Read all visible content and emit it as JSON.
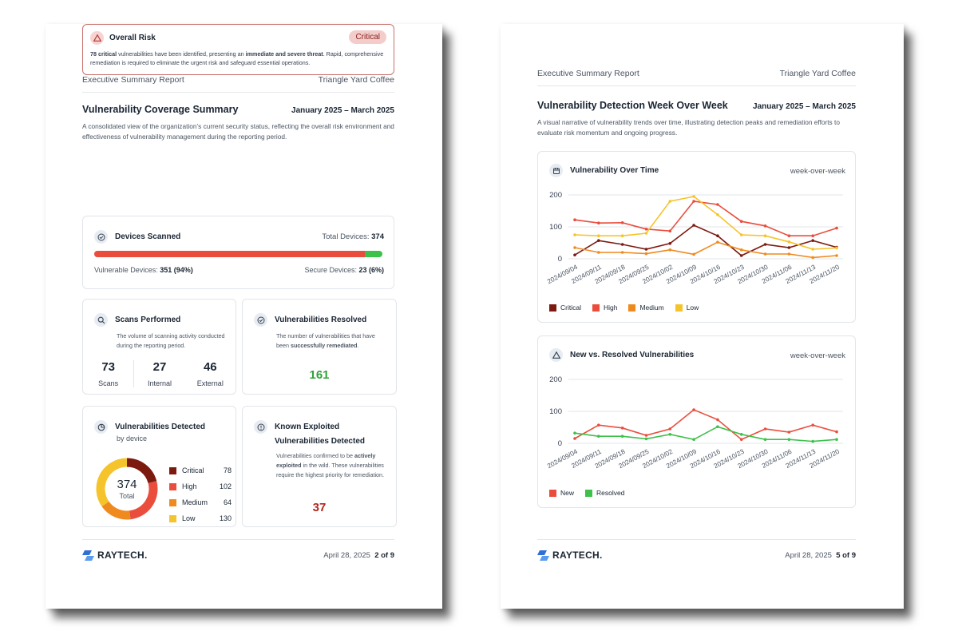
{
  "brand": {
    "logo_text": "RAYTECH."
  },
  "page1": {
    "header_left": "Executive Summary Report",
    "header_right": "Triangle Yard Coffee",
    "title": "Vulnerability Coverage Summary",
    "date_range": "January 2025 – March 2025",
    "description": "A consolidated view of the organization’s current security status, reflecting the overall risk environment and effectiveness of vulnerability management during the reporting period.",
    "overall_risk": {
      "title": "Overall Risk",
      "badge": "Critical",
      "body_bold1": "78 critical",
      "body_text1": " vulnerabilities have been identified, presenting an ",
      "body_bold2": "immediate and severe threat",
      "body_text2": ". Rapid, comprehensive remediation is required to eliminate the urgent risk and safeguard essential operations."
    },
    "devices": {
      "title": "Devices Scanned",
      "total_label": "Total Devices:",
      "total_value": "374",
      "vulnerable_label": "Vulnerable Devices:",
      "vulnerable_value": "351 (94%)",
      "secure_label": "Secure Devices:",
      "secure_value": "23 (6%)",
      "vulnerable_fraction": 0.94
    },
    "scans": {
      "title": "Scans Performed",
      "description": "The volume of scanning activity conducted during the reporting period.",
      "stats": [
        {
          "value": "73",
          "label": "Scans"
        },
        {
          "value": "27",
          "label": "Internal"
        },
        {
          "value": "46",
          "label": "External"
        }
      ]
    },
    "resolved": {
      "title": "Vulnerabilities Resolved",
      "desc_text": "The number of vulnerabilities that have been ",
      "desc_bold": "successfully remediated",
      "desc_end": ".",
      "value": "161",
      "color": "#33a13a"
    },
    "detected": {
      "title": "Vulnerabilities Detected",
      "subtitle": "by device",
      "total": "374",
      "total_label": "Total",
      "items": [
        {
          "label": "Critical",
          "value": "78",
          "color": "#7d1a10"
        },
        {
          "label": "High",
          "value": "102",
          "color": "#ea4d3c"
        },
        {
          "label": "Medium",
          "value": "64",
          "color": "#ef8a1f"
        },
        {
          "label": "Low",
          "value": "130",
          "color": "#f5c42c"
        }
      ]
    },
    "kev": {
      "title": "Known Exploited Vulnerabilities Detected",
      "desc_text1": "Vulnerabilities confirmed to be ",
      "desc_bold": "actively exploited",
      "desc_text2": " in the wild. These vulnerabilities require the highest priority for remediation.",
      "value": "37",
      "color": "#b3261e"
    },
    "footer_date": "April 28, 2025",
    "footer_page": "2 of 9"
  },
  "page2": {
    "header_left": "Executive Summary Report",
    "header_right": "Triangle Yard Coffee",
    "title": "Vulnerability Detection Week Over Week",
    "date_range": "January 2025 – March 2025",
    "description": "A visual narrative of vulnerability trends over time, illustrating detection peaks and remediation efforts to evaluate risk momentum and ongoing progress.",
    "footer_date": "April 28, 2025",
    "footer_page": "5 of 9"
  },
  "chart_data": [
    {
      "type": "line",
      "title": "Vulnerability Over Time",
      "subtitle": "week-over-week",
      "x": [
        "2024/09/04",
        "2024/09/11",
        "2024/09/18",
        "2024/09/25",
        "2024/10/02",
        "2024/10/09",
        "2024/10/16",
        "2024/10/23",
        "2024/10/30",
        "2024/11/06",
        "2024/11/13",
        "2024/11/20"
      ],
      "ylim": [
        0,
        200
      ],
      "yticks": [
        0,
        100,
        200
      ],
      "grid": true,
      "legend": "bottom-left",
      "series": [
        {
          "name": "Critical",
          "color": "#7d1a10",
          "values": [
            12,
            57,
            45,
            30,
            48,
            105,
            72,
            10,
            45,
            35,
            57,
            36
          ]
        },
        {
          "name": "High",
          "color": "#ea4d3c",
          "values": [
            122,
            112,
            113,
            93,
            87,
            180,
            170,
            117,
            103,
            72,
            72,
            96
          ]
        },
        {
          "name": "Medium",
          "color": "#ef8a1f",
          "values": [
            35,
            20,
            20,
            16,
            28,
            14,
            52,
            28,
            15,
            15,
            4,
            10
          ]
        },
        {
          "name": "Low",
          "color": "#f5c42c",
          "values": [
            75,
            72,
            72,
            80,
            180,
            195,
            138,
            75,
            72,
            53,
            30,
            34
          ]
        }
      ]
    },
    {
      "type": "line",
      "title": "New vs. Resolved Vulnerabilities",
      "subtitle": "week-over-week",
      "x": [
        "2024/09/04",
        "2024/09/11",
        "2024/09/18",
        "2024/09/25",
        "2024/10/02",
        "2024/10/09",
        "2024/10/16",
        "2024/10/23",
        "2024/10/30",
        "2024/11/06",
        "2024/11/13",
        "2024/11/20"
      ],
      "ylim": [
        0,
        200
      ],
      "yticks": [
        0,
        100,
        200
      ],
      "grid": true,
      "legend": "bottom-left",
      "series": [
        {
          "name": "New",
          "color": "#ea4d3c",
          "values": [
            15,
            57,
            48,
            25,
            45,
            105,
            74,
            12,
            45,
            35,
            57,
            36
          ]
        },
        {
          "name": "Resolved",
          "color": "#3cc14a",
          "values": [
            32,
            22,
            22,
            14,
            28,
            12,
            52,
            28,
            12,
            12,
            6,
            12
          ]
        }
      ]
    }
  ]
}
